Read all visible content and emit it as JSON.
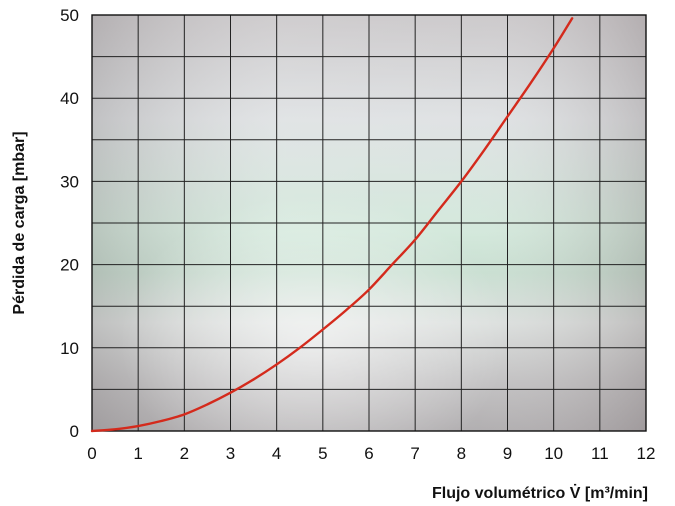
{
  "chart_data": {
    "type": "line",
    "title": "",
    "xlabel": "Flujo volumétrico V̇ [m³/min]",
    "ylabel": "Pérdida de carga [mbar]",
    "xlim": [
      0,
      12
    ],
    "ylim": [
      0,
      50
    ],
    "x_ticks": [
      0,
      1,
      2,
      3,
      4,
      5,
      6,
      7,
      8,
      9,
      10,
      11,
      12
    ],
    "y_ticks": [
      0,
      10,
      20,
      30,
      40,
      50
    ],
    "x_grid_step": 1,
    "y_grid_step": 5,
    "grid": true,
    "legend": "none",
    "series": [
      {
        "color": "#d42a1c",
        "x": [
          0,
          0.5,
          1,
          1.5,
          2,
          2.5,
          3,
          3.5,
          4,
          4.5,
          5,
          5.5,
          6,
          6.5,
          7,
          7.5,
          8,
          8.5,
          9,
          9.5,
          10,
          10.4
        ],
        "y": [
          0,
          0.2,
          0.6,
          1.2,
          2.0,
          3.2,
          4.6,
          6.2,
          8.0,
          10.0,
          12.2,
          14.5,
          17.0,
          20.0,
          23.0,
          26.5,
          30.0,
          33.8,
          37.8,
          41.8,
          46.0,
          49.6
        ]
      }
    ]
  }
}
